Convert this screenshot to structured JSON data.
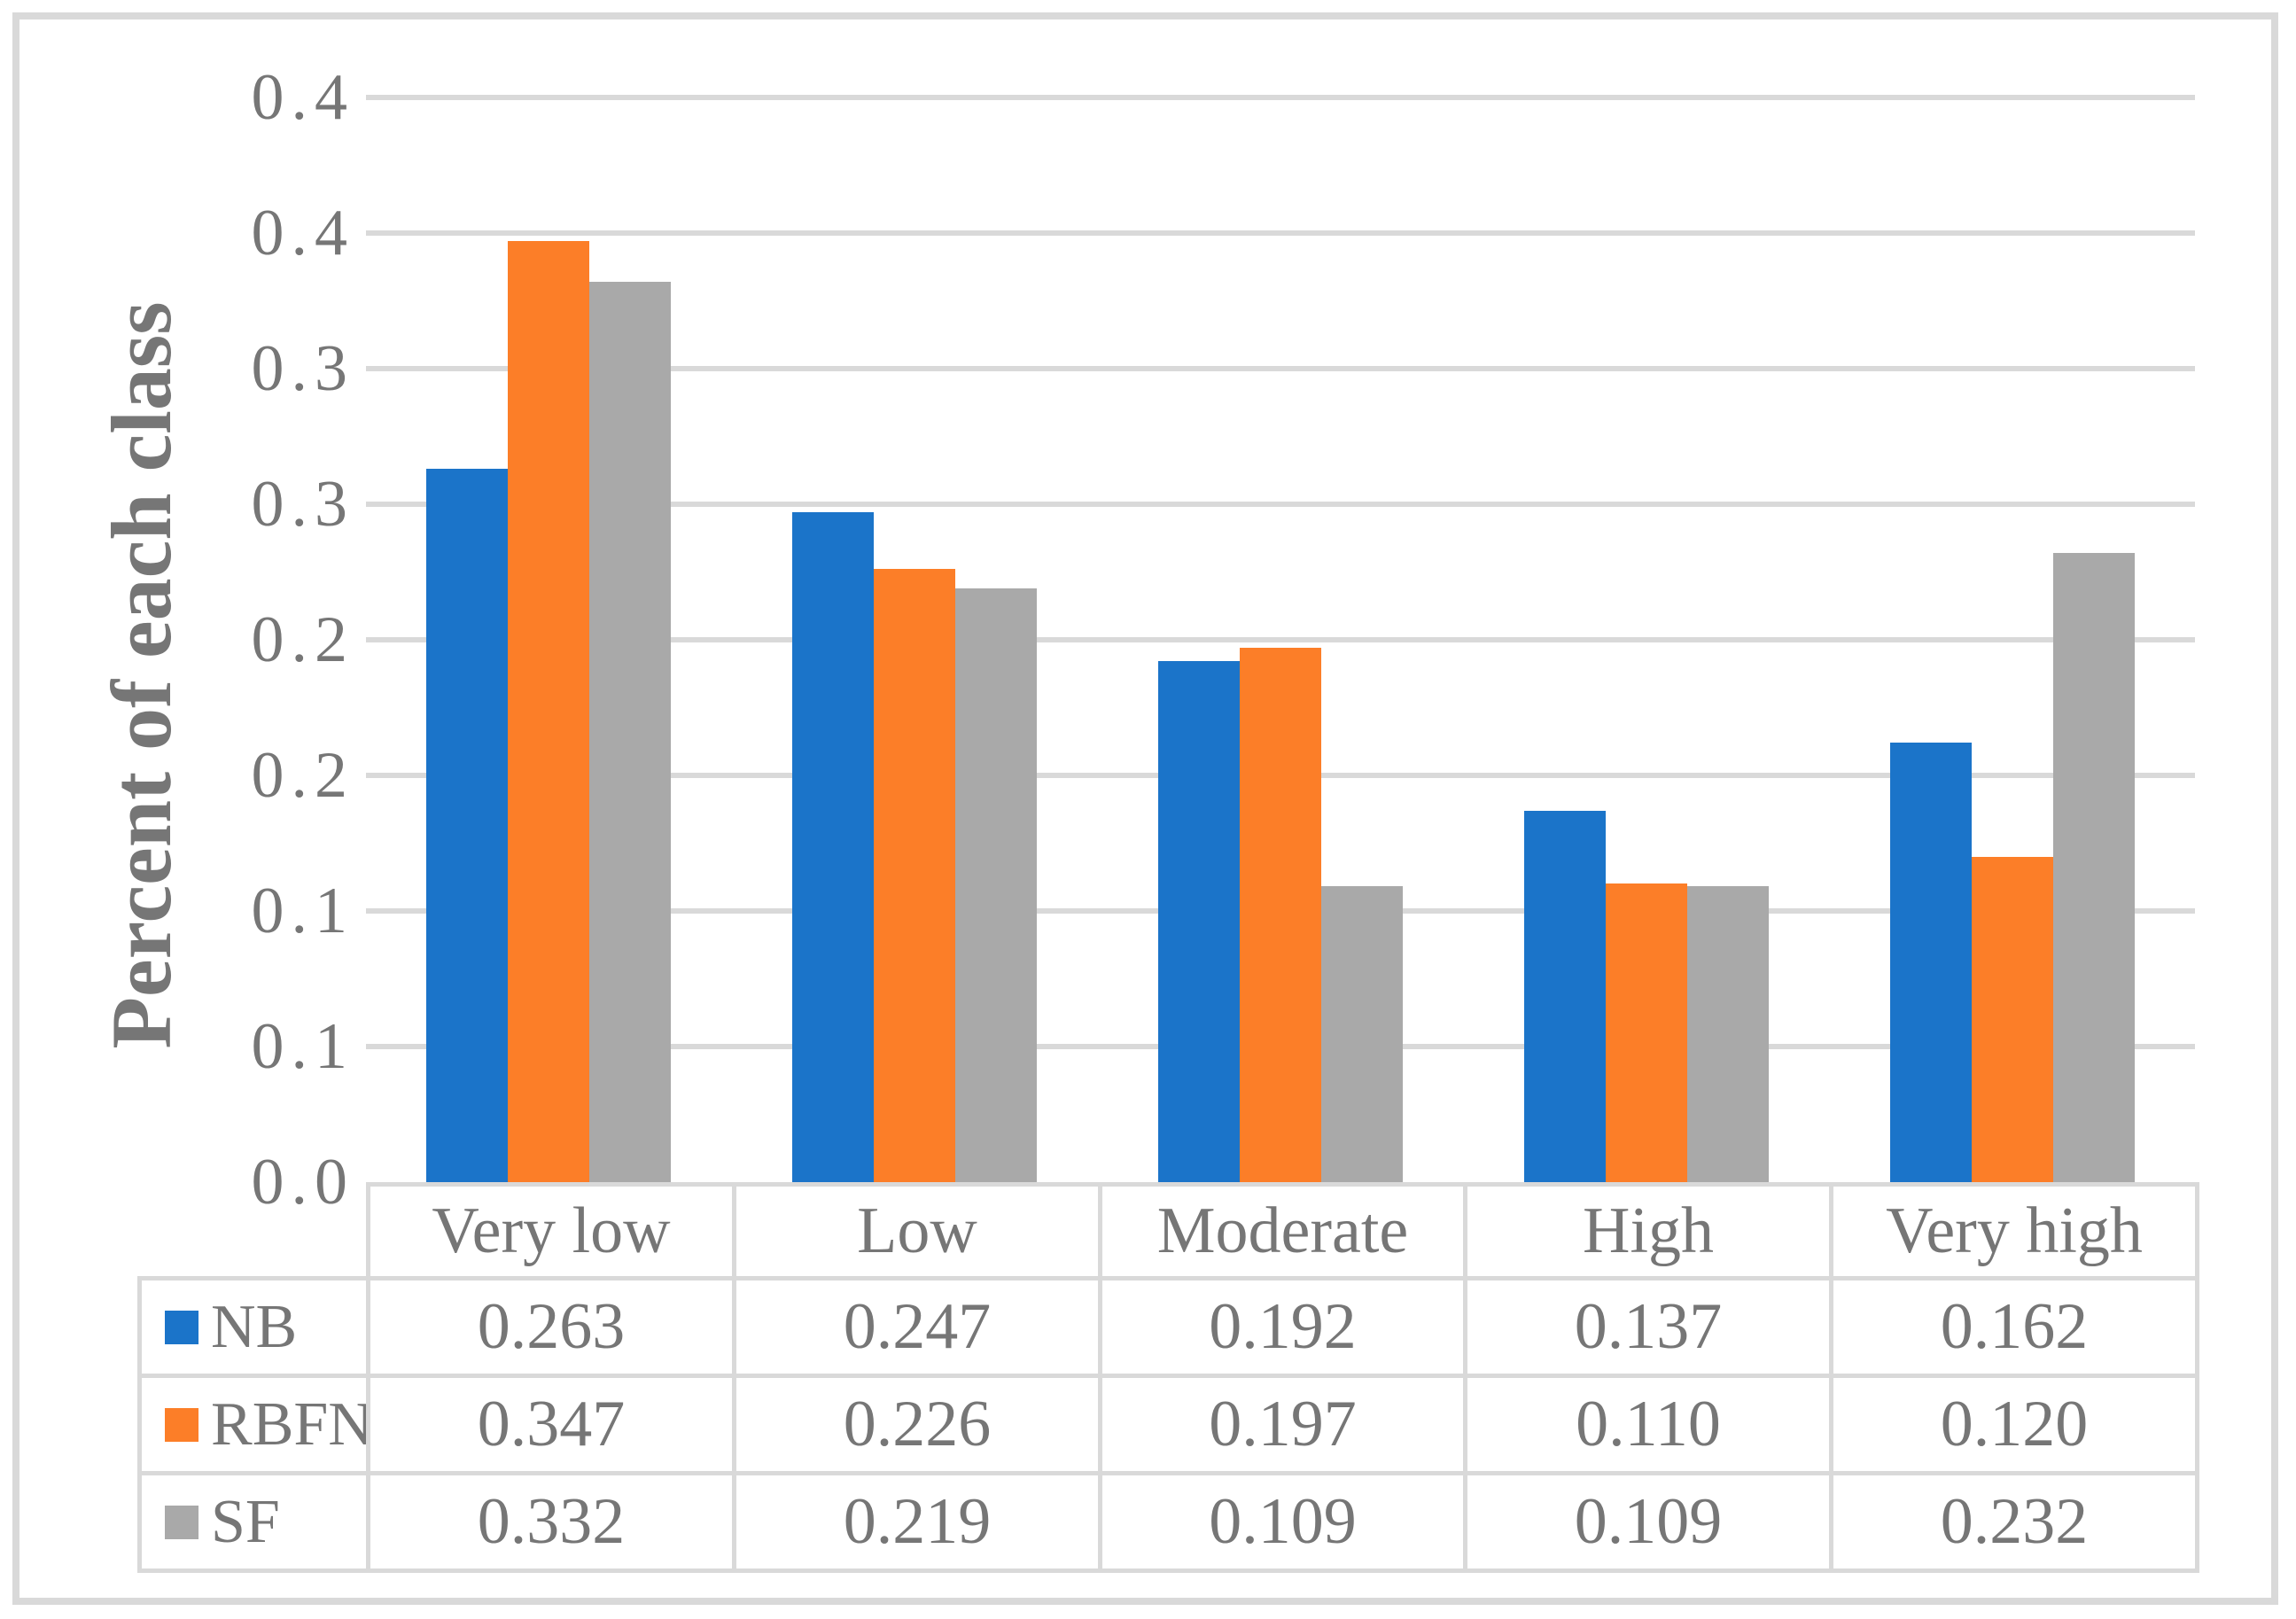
{
  "figure": {
    "kind": "grouped bar chart with data table",
    "background_color": "#ffffff",
    "border_color": "#d9d9d9",
    "gridline_color": "#d9d9d9",
    "text_color": "#767676"
  },
  "chart_data": {
    "type": "bar",
    "title": "",
    "xlabel": "",
    "ylabel": "Percent of each class",
    "categories": [
      "Very low",
      "Low",
      "Moderate",
      "High",
      "Very high"
    ],
    "series": [
      {
        "name": "NB",
        "color": "#1b74c9",
        "values": [
          0.263,
          0.247,
          0.192,
          0.137,
          0.162
        ]
      },
      {
        "name": "RBFN",
        "color": "#fc7e28",
        "values": [
          0.347,
          0.226,
          0.197,
          0.11,
          0.12
        ]
      },
      {
        "name": "SF",
        "color": "#a9a9a9",
        "values": [
          0.332,
          0.219,
          0.109,
          0.109,
          0.232
        ]
      }
    ],
    "ylim": [
      0,
      0.4
    ],
    "ytick_step": 0.05,
    "ytick_labels_bottom_to_top": [
      "0.0",
      "0.1",
      "0.1",
      "0.2",
      "0.2",
      "0.3",
      "0.3",
      "0.4",
      "0.4"
    ],
    "grid": true,
    "legend_position": "left column of data table below chart",
    "data_table_shown": true,
    "value_decimals": 3
  }
}
